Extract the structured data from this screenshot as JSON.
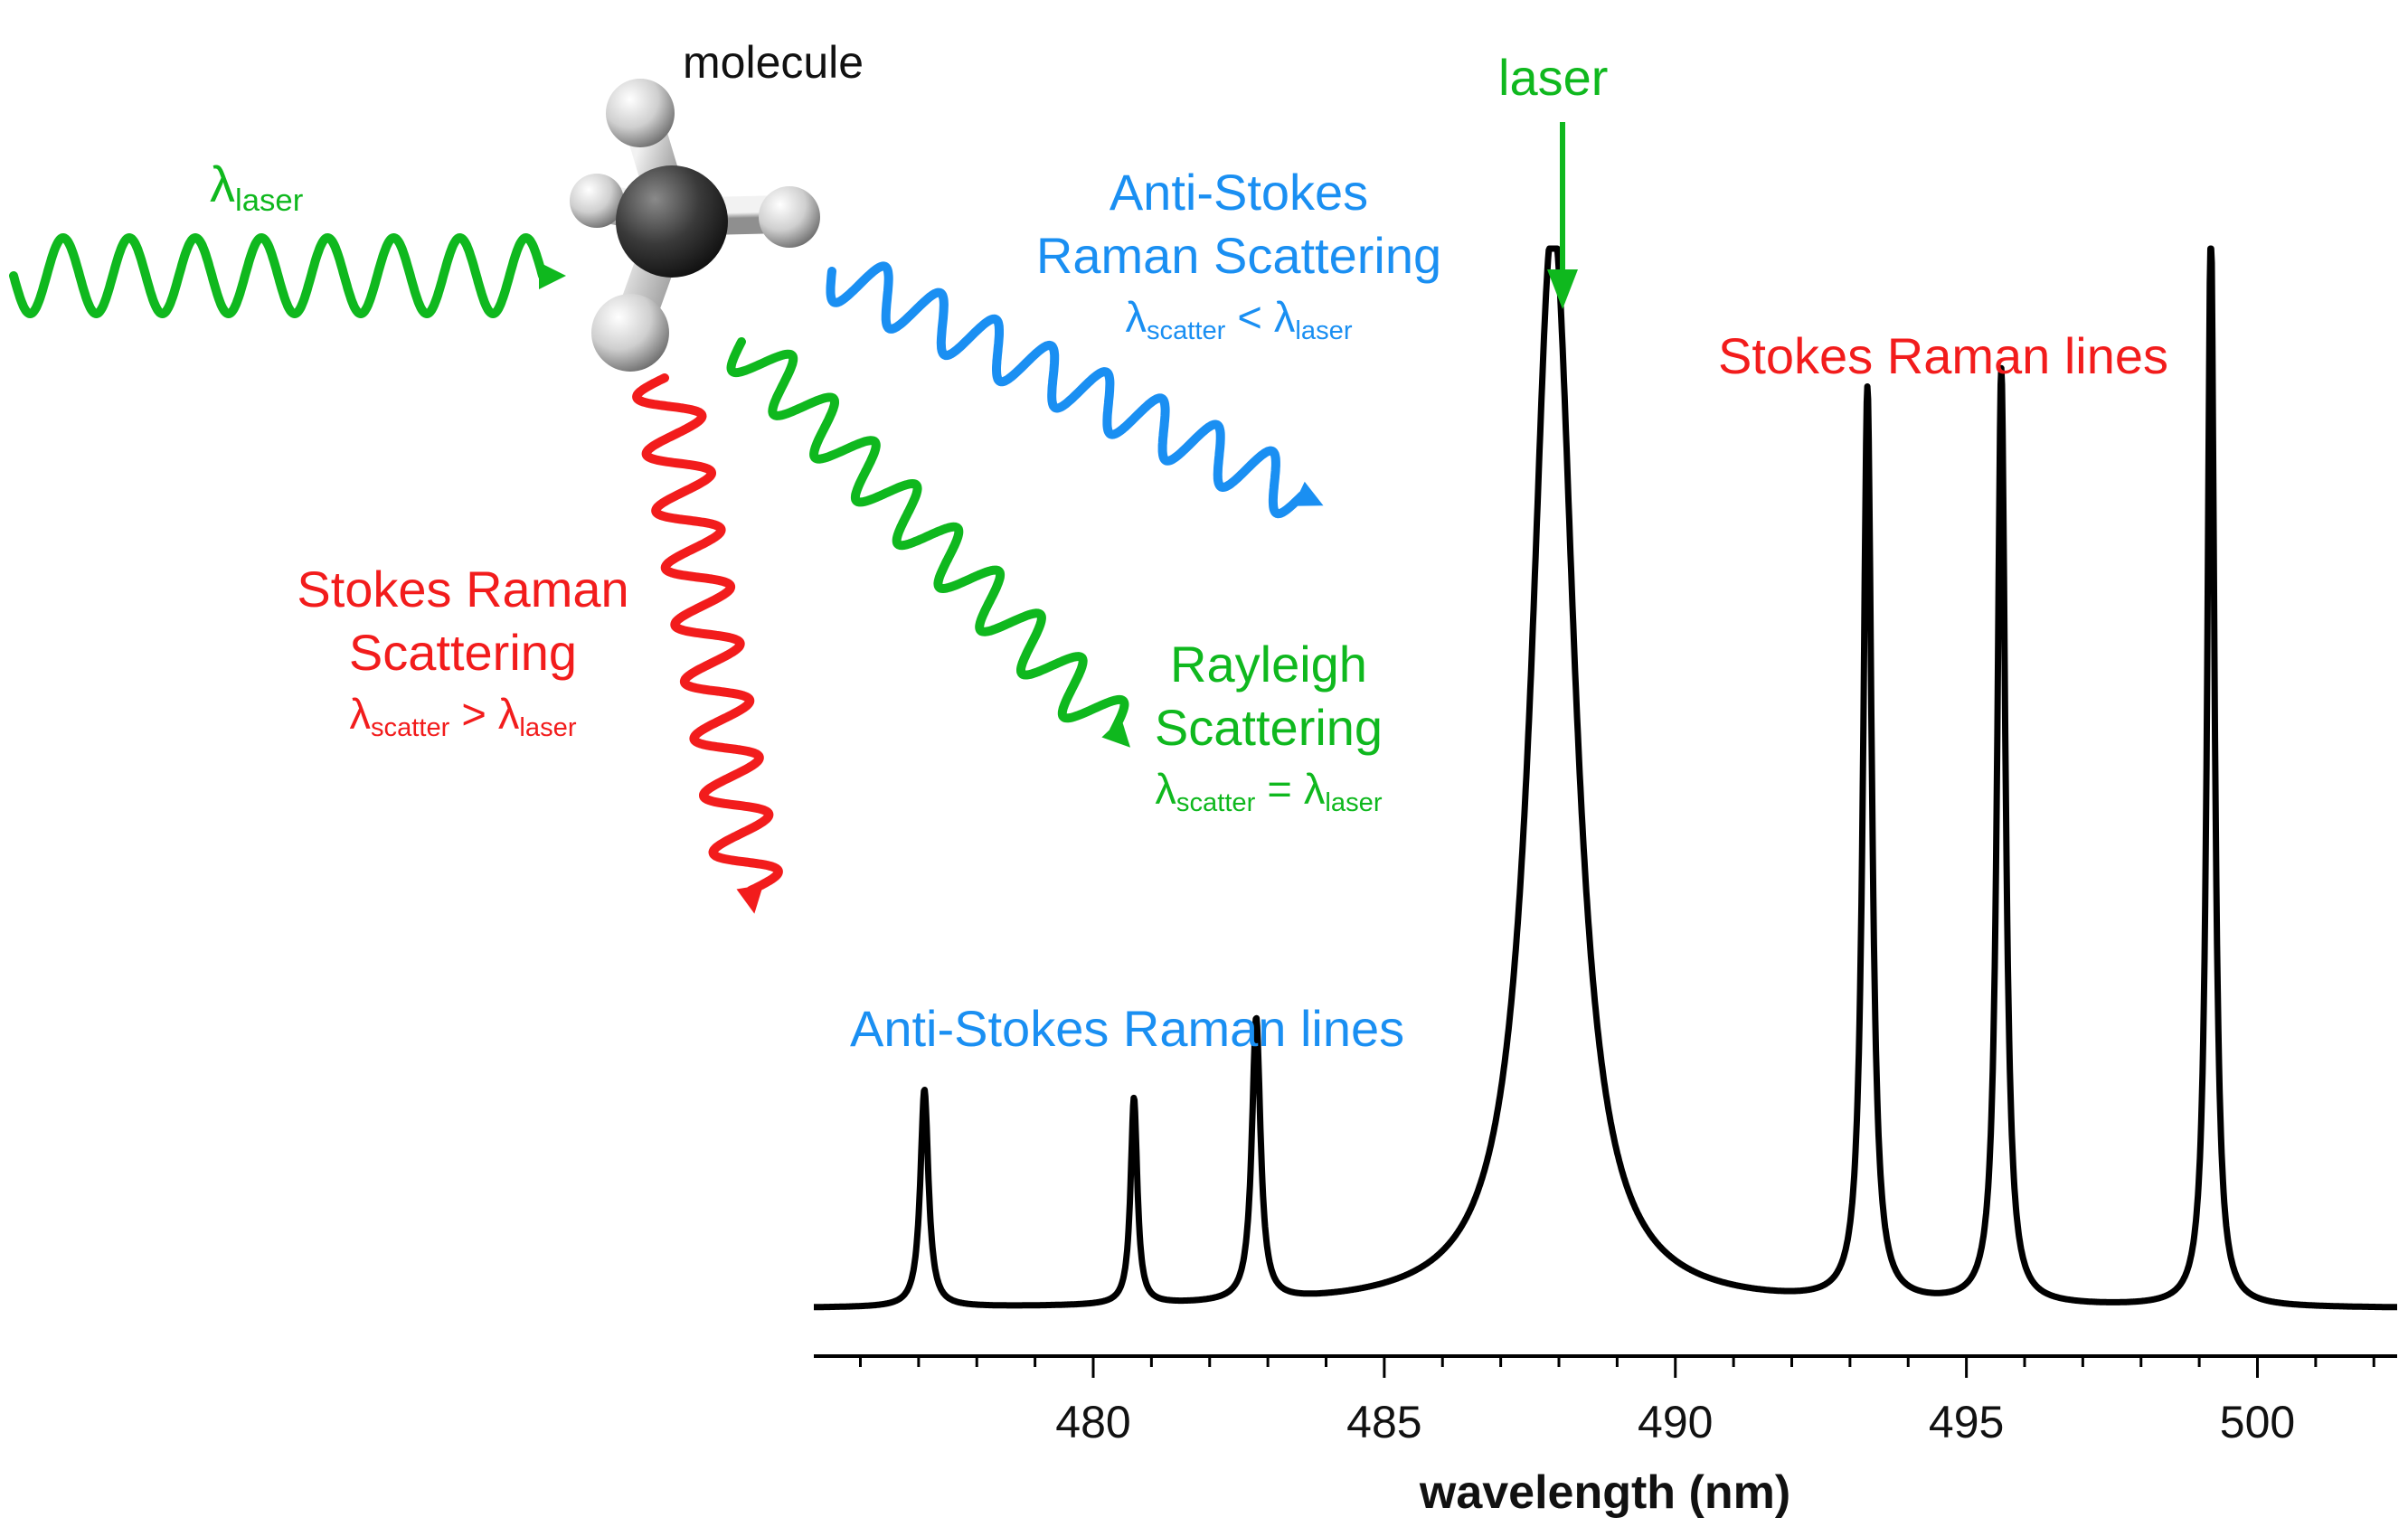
{
  "diagram": {
    "molecule_label": "molecule",
    "incident": {
      "symbol": "λ",
      "sub": "laser"
    },
    "anti_stokes": {
      "line1": "Anti-Stokes",
      "line2": "Raman Scattering",
      "rel": {
        "a": "λ",
        "a_sub": "scatter",
        "op": "<",
        "b": "λ",
        "b_sub": "laser"
      }
    },
    "rayleigh": {
      "line1": "Rayleigh",
      "line2": "Scattering",
      "rel": {
        "a": "λ",
        "a_sub": "scatter",
        "op": "=",
        "b": "λ",
        "b_sub": "laser"
      }
    },
    "stokes": {
      "line1": "Stokes Raman",
      "line2": "Scattering",
      "rel": {
        "a": "λ",
        "a_sub": "scatter",
        "op": ">",
        "b": "λ",
        "b_sub": "laser"
      }
    },
    "colors": {
      "green": "#0fb81e",
      "blue": "#1a8ff2",
      "red": "#f21c1c",
      "spectrum": "#000000"
    }
  },
  "chart_data": {
    "type": "line",
    "xlabel": "wavelength (nm)",
    "ylabel": "",
    "xlim": [
      475.2,
      502.4
    ],
    "ylim": [
      0,
      1
    ],
    "xticks": [
      480,
      485,
      490,
      495,
      500
    ],
    "tick_labels": [
      "480",
      "485",
      "490",
      "495",
      "500"
    ],
    "baseline": 0.025,
    "peaks": [
      {
        "x": 477.1,
        "height": 0.2,
        "width": 0.17
      },
      {
        "x": 480.7,
        "height": 0.19,
        "width": 0.14
      },
      {
        "x": 482.8,
        "height": 0.26,
        "width": 0.18
      },
      {
        "x": 487.9,
        "height": 1.0,
        "width": 0.9,
        "label": "laser"
      },
      {
        "x": 493.3,
        "height": 0.84,
        "width": 0.18
      },
      {
        "x": 495.6,
        "height": 0.86,
        "width": 0.17
      },
      {
        "x": 499.2,
        "height": 1.0,
        "width": 0.15
      }
    ],
    "annotations": {
      "laser": "laser",
      "anti_stokes_lines": "Anti-Stokes Raman lines",
      "stokes_lines": "Stokes Raman lines"
    }
  }
}
